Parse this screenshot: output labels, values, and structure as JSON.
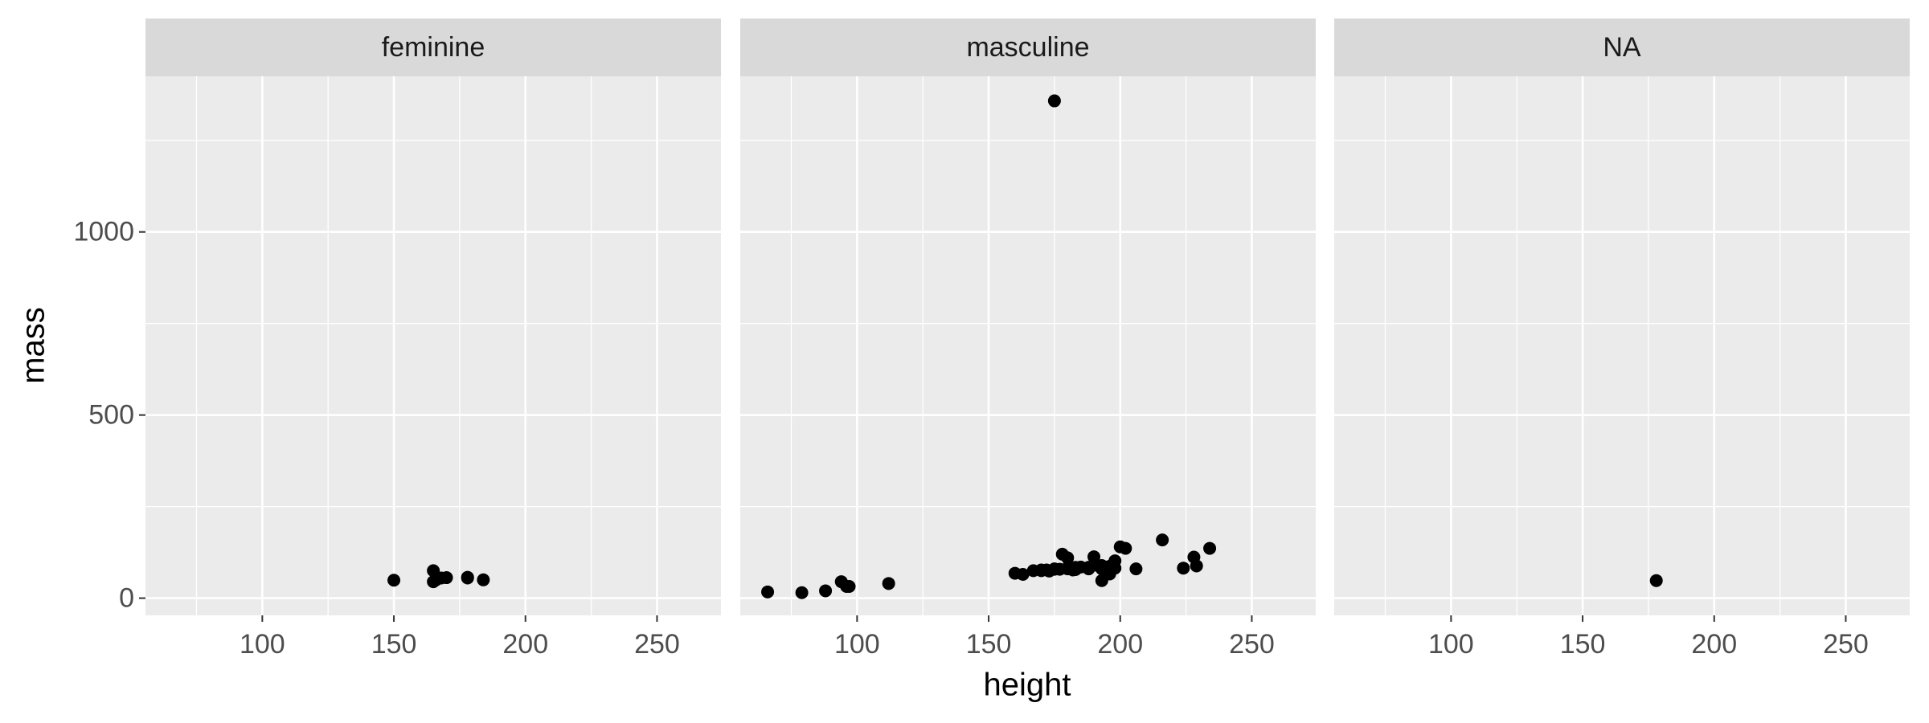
{
  "chart_data": {
    "type": "scatter",
    "x_label": "height",
    "y_label": "mass",
    "xlim": [
      55.6,
      274.3
    ],
    "ylim": [
      -47,
      1425
    ],
    "xticks": [
      100,
      150,
      200,
      250
    ],
    "yticks": [
      0,
      500,
      1000
    ],
    "grid": true,
    "color": "#000000",
    "facets": [
      {
        "label": "feminine",
        "x": [
          150,
          165,
          165,
          166,
          168,
          170,
          178,
          178,
          184
        ],
        "y": [
          49,
          75,
          45,
          50,
          55,
          56,
          55,
          57,
          50
        ]
      },
      {
        "label": "masculine",
        "x": [
          172,
          167,
          96,
          202,
          178,
          97,
          183,
          182,
          188,
          228,
          180,
          173,
          175,
          170,
          180,
          66,
          170,
          183,
          200,
          190,
          177,
          175,
          180,
          88,
          160,
          193,
          191,
          112,
          196,
          224,
          175,
          198,
          196,
          188,
          188,
          79,
          94,
          183,
          193,
          183,
          198,
          229,
          193,
          216,
          234,
          206,
          163,
          185
        ],
        "y": [
          77,
          75,
          32,
          136,
          120,
          32,
          84,
          77,
          84,
          112,
          80,
          74,
          1358,
          77,
          110,
          17,
          75,
          78,
          140,
          113,
          79,
          79,
          83,
          20,
          68,
          89,
          90,
          40,
          66,
          82,
          80,
          82,
          87,
          84,
          80,
          15,
          45,
          80,
          80,
          79,
          102,
          88,
          48,
          159,
          136,
          80,
          65,
          85
        ]
      },
      {
        "label": "NA",
        "x": [
          178
        ],
        "y": [
          48
        ]
      }
    ]
  }
}
